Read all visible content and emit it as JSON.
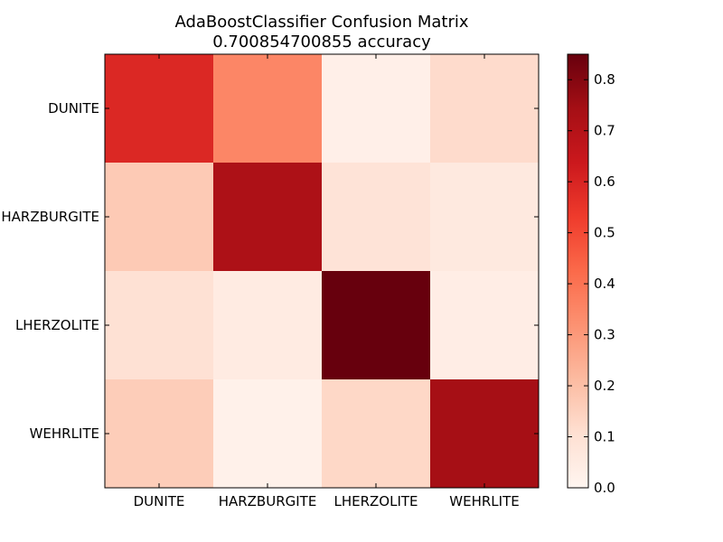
{
  "chart_data": {
    "type": "heatmap",
    "title": "AdaBoostClassifier Confusion Matrix",
    "subtitle": "0.700854700855 accuracy",
    "x_categories": [
      "DUNITE",
      "HARZBURGITE",
      "LHERZOLITE",
      "WEHRLITE"
    ],
    "y_categories": [
      "DUNITE",
      "HARZBURGITE",
      "LHERZOLITE",
      "WEHRLITE"
    ],
    "values": [
      [
        0.59,
        0.35,
        0.03,
        0.12
      ],
      [
        0.17,
        0.72,
        0.09,
        0.06
      ],
      [
        0.1,
        0.05,
        0.85,
        0.04
      ],
      [
        0.16,
        0.02,
        0.13,
        0.74
      ]
    ],
    "colormap": "Reds",
    "colorbar": {
      "min": 0.0,
      "max": 0.85,
      "ticks": [
        "0.0",
        "0.1",
        "0.2",
        "0.3",
        "0.4",
        "0.5",
        "0.6",
        "0.7",
        "0.8"
      ]
    },
    "grid": false
  }
}
